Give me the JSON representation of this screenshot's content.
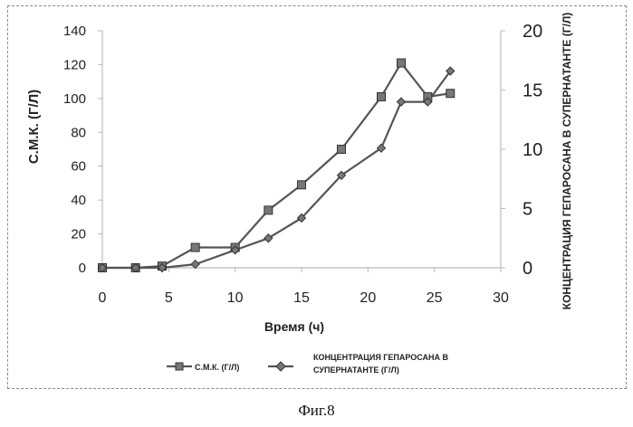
{
  "caption": "Фиг.8",
  "chart_data": {
    "type": "line",
    "x": [
      0,
      2.5,
      4.5,
      7,
      10,
      12.5,
      15,
      18,
      21,
      22.5,
      24.5,
      26.2
    ],
    "xlabel": "Время (ч)",
    "xlim": [
      0,
      30
    ],
    "xticks": [
      "0",
      "5",
      "10",
      "15",
      "20",
      "25",
      "30"
    ],
    "ylabel_left": "С.М.К. (Г/Л)",
    "ylim_left": [
      0,
      140
    ],
    "yticks_left": [
      "0",
      "20",
      "40",
      "60",
      "80",
      "100",
      "120",
      "140"
    ],
    "ylabel_right": "КОНЦЕНТРАЦИЯ ГЕПАРОСАНА В СУПЕРНАТАНТЕ (Г/Л)",
    "ylim_right": [
      0,
      20
    ],
    "yticks_right": [
      "0",
      "5",
      "10",
      "15",
      "20"
    ],
    "legend_position": "bottom",
    "grid": false,
    "series": [
      {
        "name": "С.М.К. (Г/Л)",
        "axis": "left",
        "marker": "square",
        "color": "#555555",
        "values": [
          0,
          0,
          1,
          12,
          12,
          34,
          49,
          70,
          101,
          121,
          101,
          103
        ]
      },
      {
        "name": "КОНЦЕНТРАЦИЯ ГЕПАРОСАНА В СУПЕРНАТАНТЕ (Г/Л)",
        "axis": "right",
        "marker": "diamond",
        "color": "#555555",
        "values": [
          0,
          0,
          0,
          0.3,
          1.5,
          2.5,
          4.2,
          7.8,
          10.1,
          14,
          14,
          16.6
        ]
      }
    ]
  }
}
